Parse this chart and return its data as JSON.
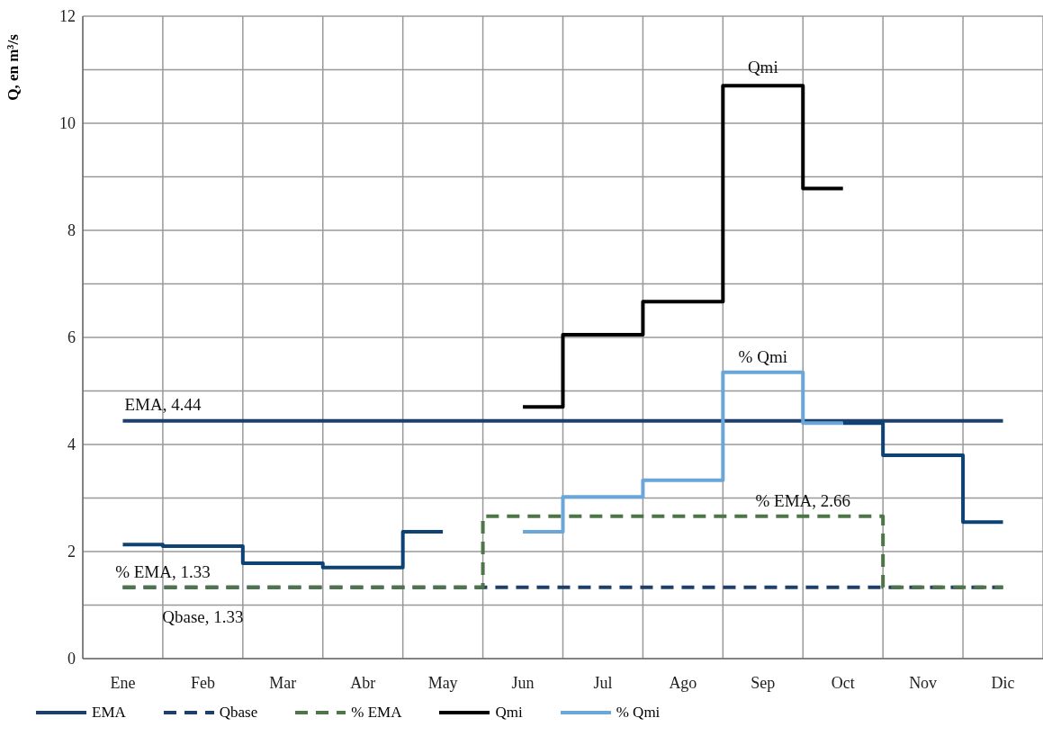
{
  "chart_data": {
    "type": "step",
    "ylabel": "Q, en m³/s",
    "categories": [
      "Ene",
      "Feb",
      "Mar",
      "Abr",
      "May",
      "Jun",
      "Jul",
      "Ago",
      "Sep",
      "Oct",
      "Nov",
      "Dic"
    ],
    "ylim": [
      0,
      12
    ],
    "yticks": [
      0,
      {
        "value": 1,
        "label": null
      },
      2,
      {
        "value": 3,
        "label": null
      },
      4,
      {
        "value": 5,
        "label": null
      },
      6,
      {
        "value": 7,
        "label": null
      },
      8,
      {
        "value": 9,
        "label": null
      },
      10,
      {
        "value": 11,
        "label": null
      },
      12
    ],
    "grid": true,
    "legend": "bottom",
    "marker": "none",
    "series": [
      {
        "name": "EMA",
        "type": "line",
        "color": "#1f3f6b",
        "line_style": "solid",
        "values": [
          4.44,
          4.44,
          4.44,
          4.44,
          4.44,
          4.44,
          4.44,
          4.44,
          4.44,
          4.44,
          4.44,
          4.44
        ]
      },
      {
        "name": "Qbase",
        "type": "line",
        "color": "#1f3f6b",
        "line_style": "dashed",
        "values": [
          1.33,
          1.33,
          1.33,
          1.33,
          1.33,
          1.33,
          1.33,
          1.33,
          1.33,
          1.33,
          1.33,
          1.33
        ]
      },
      {
        "name": "% EMA",
        "type": "step",
        "color": "#4e7548",
        "line_style": "dashed",
        "values": [
          1.33,
          1.33,
          1.33,
          1.33,
          1.33,
          2.66,
          2.66,
          2.66,
          2.66,
          2.66,
          1.33,
          1.33
        ]
      },
      {
        "type": "step",
        "color": "#0e4275",
        "line_style": "solid",
        "values": [
          2.13,
          2.1,
          1.78,
          1.7,
          2.37,
          null,
          null,
          null,
          null,
          4.4,
          3.8,
          2.55
        ]
      },
      {
        "name": "Qmi",
        "type": "step",
        "color": "#000000",
        "line_style": "solid",
        "values": [
          null,
          null,
          null,
          null,
          null,
          4.7,
          6.05,
          6.67,
          10.7,
          8.78,
          null,
          null
        ]
      },
      {
        "name": "% Qmi",
        "type": "step",
        "color": "#6aa6d8",
        "line_style": "solid",
        "values": [
          null,
          null,
          null,
          null,
          null,
          2.37,
          3.02,
          3.33,
          5.35,
          4.4,
          null,
          null
        ]
      }
    ],
    "annotations": [
      "EMA, 4.44",
      "Qmi",
      "% Qmi",
      "% EMA, 2.66",
      "% EMA, 1.33",
      "Qbase, 1.33"
    ]
  }
}
